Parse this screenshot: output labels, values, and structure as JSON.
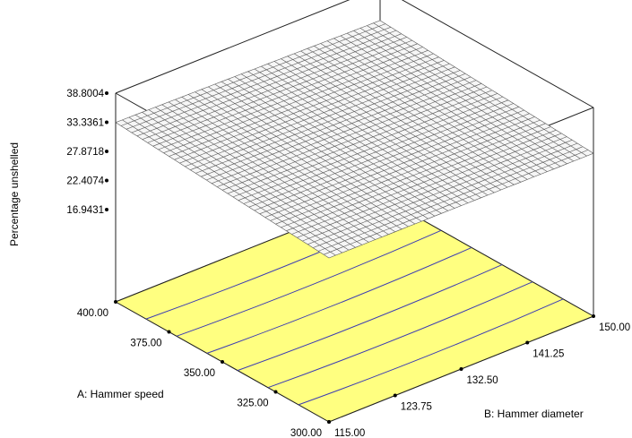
{
  "chart_data": {
    "type": "surface3d",
    "title": "",
    "zlabel": "Percentage unshelled",
    "xlabel": "A: Hammer speed",
    "ylabel": "B: Hammer diameter",
    "x_ticks": [
      "400.00",
      "375.00",
      "350.00",
      "325.00",
      "300.00"
    ],
    "y_ticks": [
      "115.00",
      "123.75",
      "132.50",
      "141.25",
      "150.00"
    ],
    "z_ticks": [
      "38.8004",
      "33.3361",
      "27.8718",
      "22.4074",
      "16.9431"
    ],
    "x_range": [
      300,
      400
    ],
    "y_range": [
      115,
      150
    ],
    "z_range": [
      16.9431,
      38.8004
    ],
    "surface_corners": [
      {
        "x": 400,
        "y": 115,
        "z": 33.3
      },
      {
        "x": 400,
        "y": 150,
        "z": 32.6
      },
      {
        "x": 300,
        "y": 150,
        "z": 30.2
      },
      {
        "x": 300,
        "y": 115,
        "z": 30.4
      }
    ],
    "contour_count": 6,
    "colors": {
      "floor": "#ffff80",
      "contour": "#3b3bb3",
      "mesh": "#555555",
      "surface": "#f6f6f6"
    }
  }
}
